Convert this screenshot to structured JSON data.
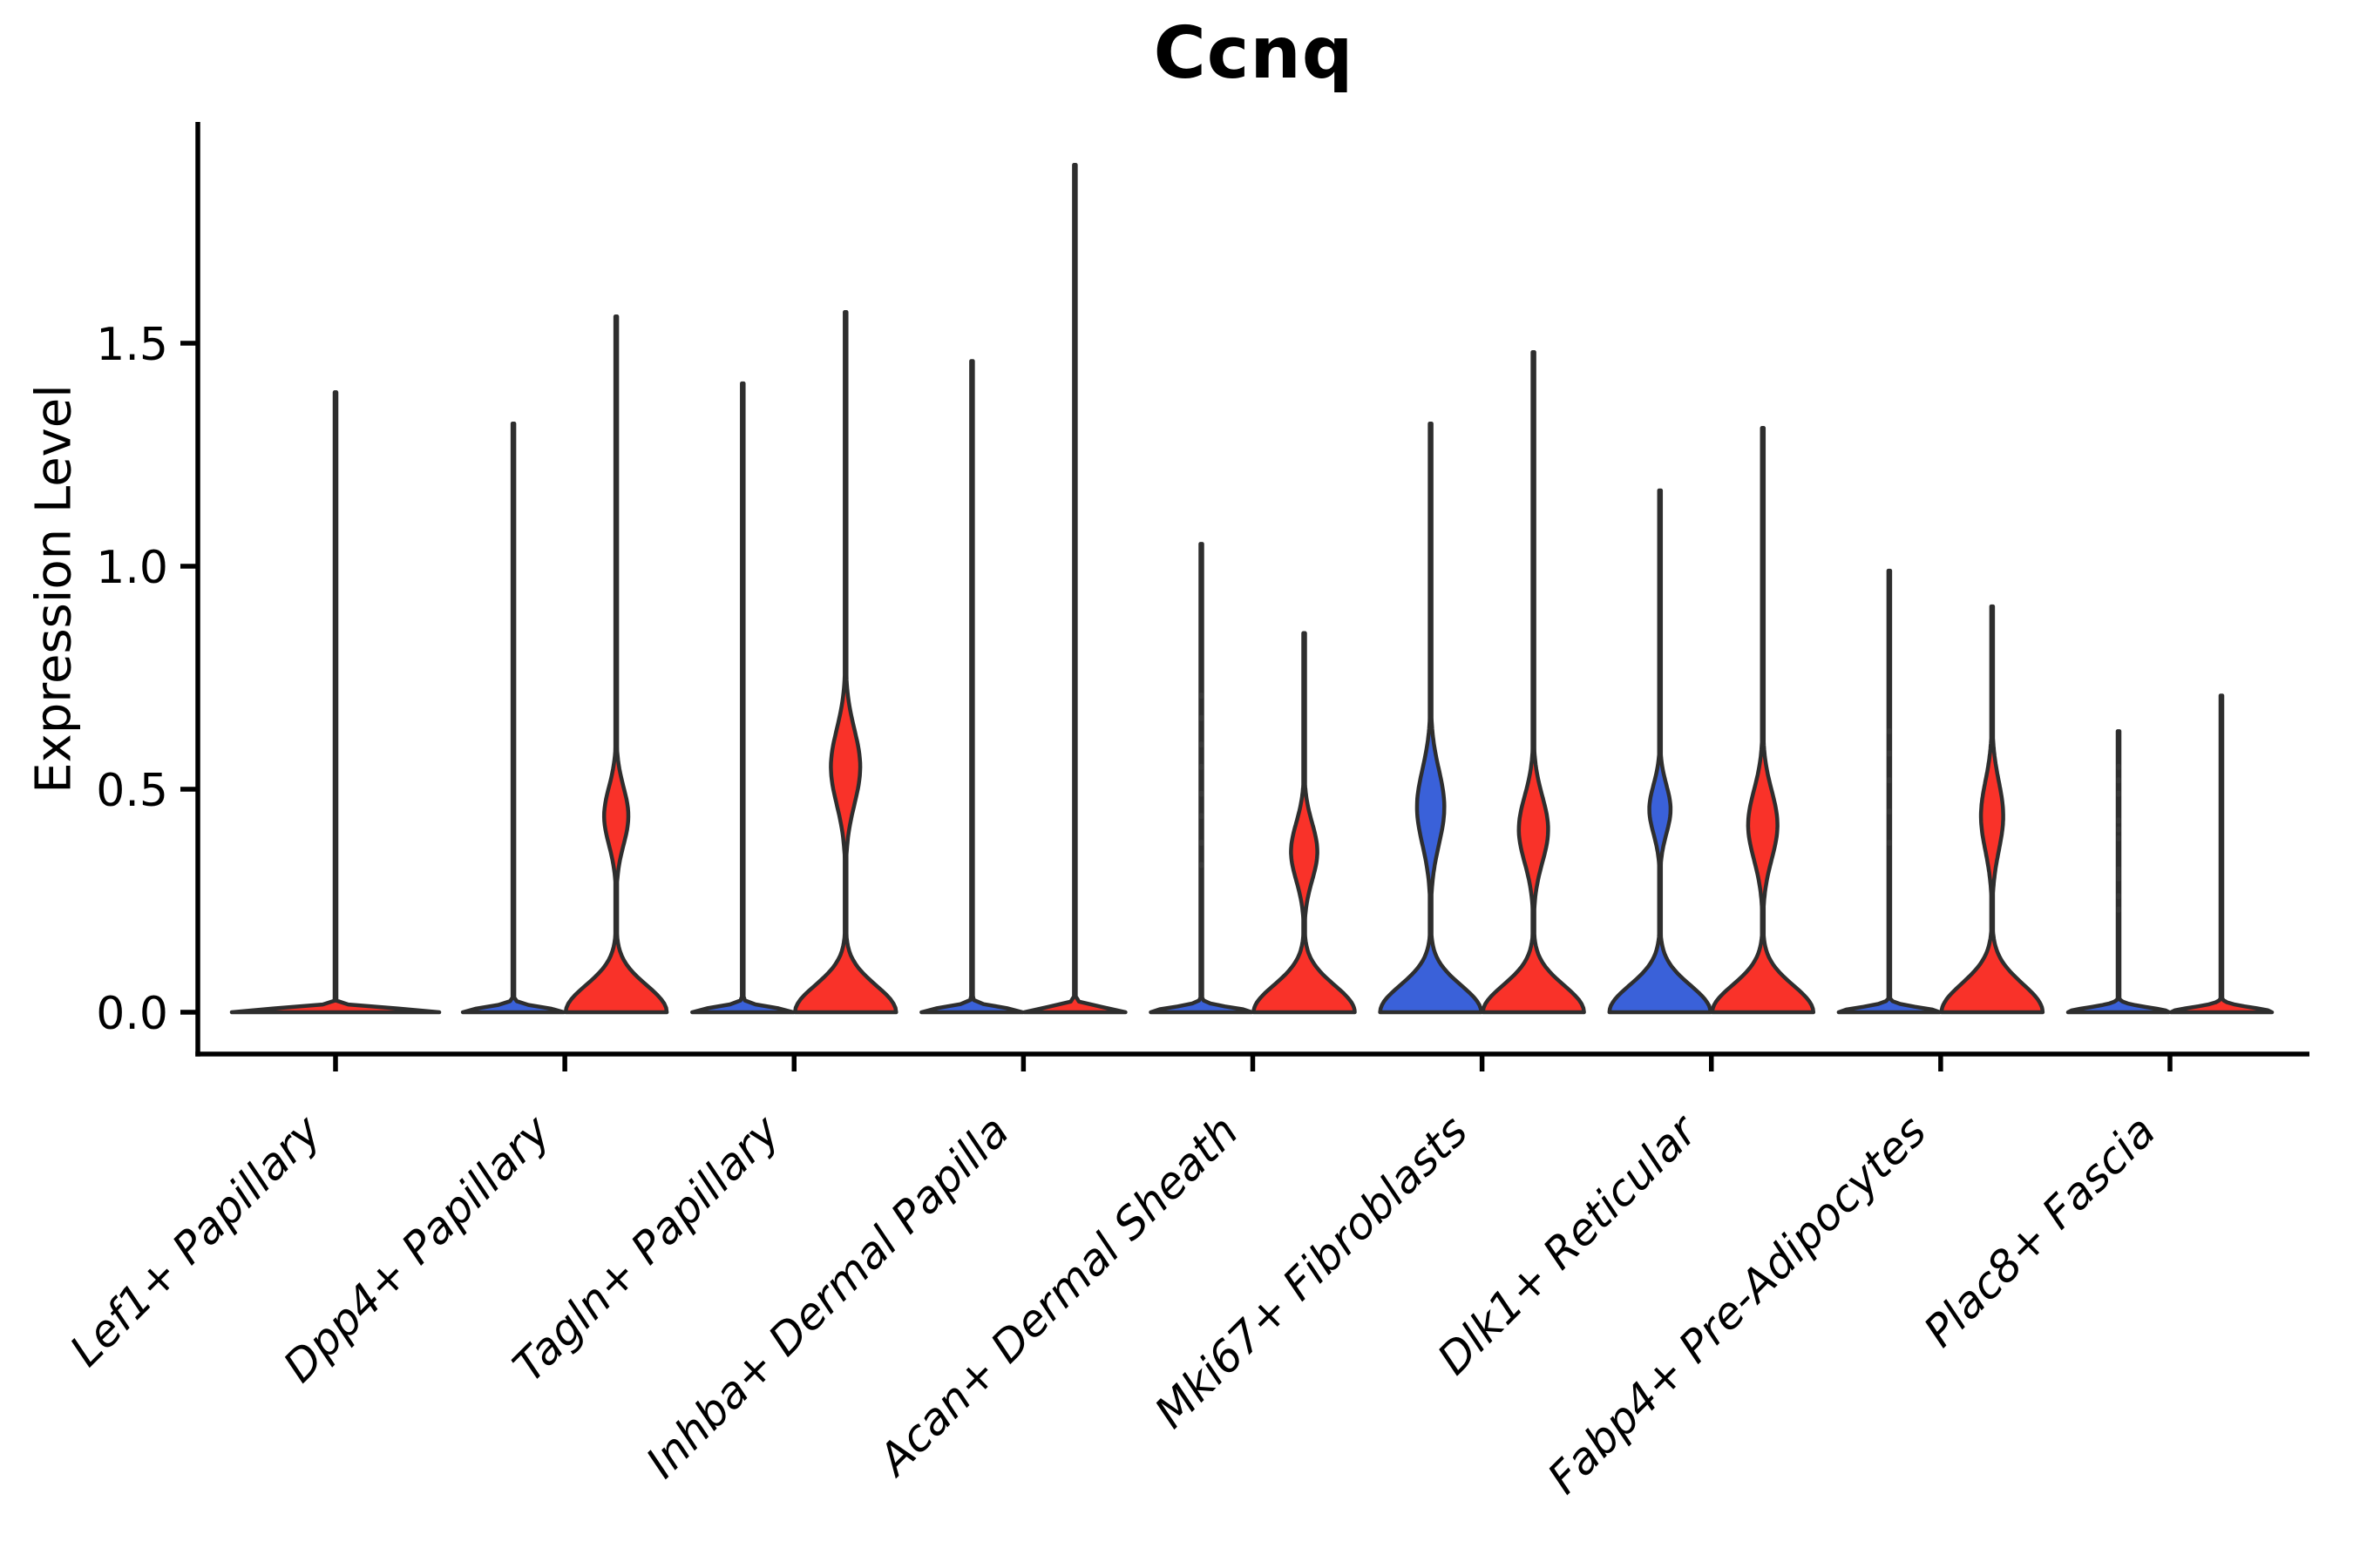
{
  "figure": {
    "title": "Ccnq",
    "ylabel": "Expression Level"
  },
  "chart_data": {
    "type": "violin",
    "title": "Ccnq",
    "xlabel": "",
    "ylabel": "Expression Level",
    "ylim": [
      0,
      1.98
    ],
    "yticks": [
      0,
      0.5,
      1.0,
      1.5
    ],
    "ytick_labels": [
      "0.0",
      "0.5",
      "1.0",
      "1.5"
    ],
    "grid": false,
    "legend_position": "none",
    "palette": {
      "red": "#F93229",
      "blue": "#3A61D9",
      "outline": "#2E2E2E",
      "axis": "#000000",
      "dot": "#3A3A3A"
    },
    "categories": [
      "Lef1+ Papillary",
      "Dpp4+ Papillary",
      "Tagln+ Papillary",
      "Inhba+ Dermal Papilla",
      "Acan+ Dermal Sheath",
      "Mki67+ Fibroblasts",
      "Dlk1+ Reticular",
      "Fabp4+ Pre-Adipocytes",
      "Plac8+ Fascia"
    ],
    "groups": [
      {
        "category": "Lef1+ Papillary",
        "violins": [
          {
            "position": "center",
            "color": "red",
            "max_expression": 1.39,
            "base_spread": 0.012,
            "lens": null,
            "dots": []
          }
        ]
      },
      {
        "category": "Dpp4+ Papillary",
        "violins": [
          {
            "position": "left",
            "color": "blue",
            "max_expression": 1.32,
            "base_spread": 0.015,
            "lens": null,
            "dots": []
          },
          {
            "position": "right",
            "color": "red",
            "max_expression": 1.56,
            "base_spread": 0.085,
            "lens": {
              "center": 0.44,
              "spread": 0.1,
              "halfwidth_rel": 0.24
            },
            "dots": []
          }
        ]
      },
      {
        "category": "Tagln+ Papillary",
        "violins": [
          {
            "position": "left",
            "color": "blue",
            "max_expression": 1.41,
            "base_spread": 0.015,
            "lens": null,
            "dots": []
          },
          {
            "position": "right",
            "color": "red",
            "max_expression": 1.57,
            "base_spread": 0.085,
            "lens": {
              "center": 0.55,
              "spread": 0.13,
              "halfwidth_rel": 0.29
            },
            "dots": []
          }
        ]
      },
      {
        "category": "Inhba+ Dermal Papilla",
        "violins": [
          {
            "position": "left",
            "color": "blue",
            "max_expression": 1.46,
            "base_spread": 0.015,
            "lens": null,
            "dots": []
          },
          {
            "position": "right",
            "color": "red",
            "max_expression": 1.9,
            "base_spread": 0.015,
            "lens": null,
            "dots": []
          }
        ]
      },
      {
        "category": "Acan+ Dermal Sheath",
        "violins": [
          {
            "position": "left",
            "color": "blue",
            "max_expression": 1.05,
            "base_spread": 0.015,
            "lens": null,
            "dots": [
              0.33,
              0.38,
              0.44,
              0.49,
              0.55,
              0.6,
              0.66,
              0.71
            ]
          },
          {
            "position": "right",
            "color": "red",
            "max_expression": 0.85,
            "base_spread": 0.085,
            "lens": {
              "center": 0.36,
              "spread": 0.1,
              "halfwidth_rel": 0.26
            },
            "dots": []
          }
        ]
      },
      {
        "category": "Mki67+ Fibroblasts",
        "violins": [
          {
            "position": "left",
            "color": "blue",
            "max_expression": 1.32,
            "base_spread": 0.085,
            "lens": {
              "center": 0.46,
              "spread": 0.13,
              "halfwidth_rel": 0.27
            },
            "dots": []
          },
          {
            "position": "right",
            "color": "red",
            "max_expression": 1.48,
            "base_spread": 0.085,
            "lens": {
              "center": 0.41,
              "spread": 0.115,
              "halfwidth_rel": 0.29
            },
            "dots": []
          }
        ]
      },
      {
        "category": "Dlk1+ Reticular",
        "violins": [
          {
            "position": "left",
            "color": "blue",
            "max_expression": 1.17,
            "base_spread": 0.085,
            "lens": {
              "center": 0.455,
              "spread": 0.085,
              "halfwidth_rel": 0.21
            },
            "dots": []
          },
          {
            "position": "right",
            "color": "red",
            "max_expression": 1.31,
            "base_spread": 0.085,
            "lens": {
              "center": 0.42,
              "spread": 0.12,
              "halfwidth_rel": 0.29
            },
            "dots": []
          }
        ]
      },
      {
        "category": "Fabp4+ Pre-Adipocytes",
        "violins": [
          {
            "position": "left",
            "color": "blue",
            "max_expression": 0.99,
            "base_spread": 0.015,
            "lens": null,
            "dots": [
              0.38,
              0.45,
              0.52,
              0.58,
              0.63
            ]
          },
          {
            "position": "right",
            "color": "red",
            "max_expression": 0.91,
            "base_spread": 0.09,
            "lens": {
              "center": 0.44,
              "spread": 0.12,
              "halfwidth_rel": 0.22
            },
            "dots": []
          }
        ]
      },
      {
        "category": "Plac8+ Fascia",
        "violins": [
          {
            "position": "left",
            "color": "blue",
            "max_expression": 0.63,
            "base_spread": 0.015,
            "lens": null,
            "dots": [
              0.23,
              0.26,
              0.3,
              0.31,
              0.32,
              0.39,
              0.41,
              0.43,
              0.49,
              0.52,
              0.55
            ]
          },
          {
            "position": "right",
            "color": "red",
            "max_expression": 0.71,
            "base_spread": 0.015,
            "lens": null,
            "dots": []
          }
        ]
      }
    ]
  }
}
